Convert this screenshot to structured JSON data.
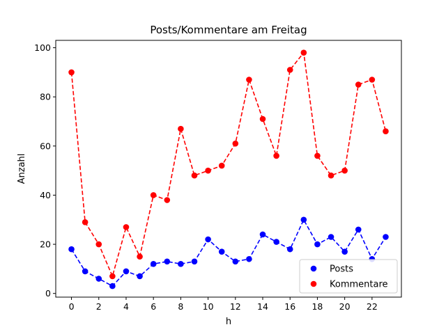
{
  "chart_data": {
    "type": "line",
    "title": "Posts/Kommentare am Freitag",
    "xlabel": "h",
    "ylabel": "Anzahl",
    "x": [
      0,
      1,
      2,
      3,
      4,
      5,
      6,
      7,
      8,
      9,
      10,
      11,
      12,
      13,
      14,
      15,
      16,
      17,
      18,
      19,
      20,
      21,
      22,
      23
    ],
    "xlim": [
      -1.15,
      24.15
    ],
    "ylim": [
      -1.5,
      103
    ],
    "xticks": [
      0,
      2,
      4,
      6,
      8,
      10,
      12,
      14,
      16,
      18,
      20,
      22
    ],
    "yticks": [
      0,
      20,
      40,
      60,
      80,
      100
    ],
    "grid": false,
    "legend_position": "lower-right",
    "series": [
      {
        "name": "Posts",
        "color": "#0000ff",
        "line_style": "dashed",
        "marker": "circle",
        "values": [
          18,
          9,
          6,
          3,
          9,
          7,
          12,
          13,
          12,
          13,
          22,
          17,
          13,
          14,
          24,
          21,
          18,
          30,
          20,
          23,
          17,
          26,
          14,
          23
        ]
      },
      {
        "name": "Kommentare",
        "color": "#ff0000",
        "line_style": "dashed",
        "marker": "circle",
        "values": [
          90,
          29,
          20,
          7,
          27,
          15,
          40,
          38,
          67,
          48,
          50,
          52,
          61,
          87,
          71,
          56,
          91,
          98,
          56,
          48,
          50,
          85,
          87,
          66
        ]
      }
    ]
  }
}
